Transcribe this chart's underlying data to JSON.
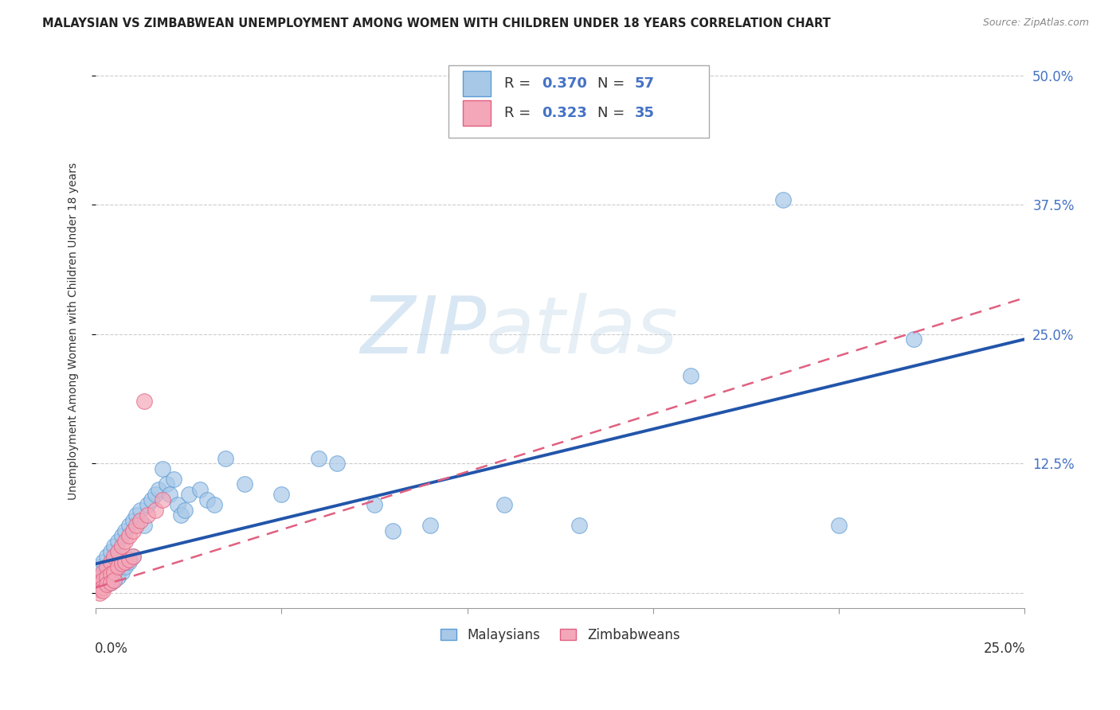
{
  "title": "MALAYSIAN VS ZIMBABWEAN UNEMPLOYMENT AMONG WOMEN WITH CHILDREN UNDER 18 YEARS CORRELATION CHART",
  "source": "Source: ZipAtlas.com",
  "ylabel": "Unemployment Among Women with Children Under 18 years",
  "xlim": [
    0.0,
    0.25
  ],
  "ylim": [
    -0.015,
    0.52
  ],
  "blue_color": "#a8c8e8",
  "blue_edge_color": "#5b9bd5",
  "pink_color": "#f4a7b9",
  "pink_edge_color": "#e06080",
  "blue_line_color": "#2255aa",
  "pink_line_color": "#e06080",
  "malaysians_label": "Malaysians",
  "zimbabweans_label": "Zimbabweans",
  "legend_text_color": "#4472c4",
  "watermark_color": "#cce0f0",
  "malaysians_x": [
    0.001,
    0.001,
    0.002,
    0.002,
    0.002,
    0.003,
    0.003,
    0.003,
    0.004,
    0.004,
    0.004,
    0.005,
    0.005,
    0.005,
    0.006,
    0.006,
    0.006,
    0.007,
    0.007,
    0.008,
    0.008,
    0.009,
    0.009,
    0.01,
    0.01,
    0.011,
    0.012,
    0.013,
    0.014,
    0.015,
    0.016,
    0.017,
    0.018,
    0.019,
    0.02,
    0.021,
    0.022,
    0.023,
    0.024,
    0.025,
    0.028,
    0.03,
    0.032,
    0.035,
    0.04,
    0.05,
    0.06,
    0.065,
    0.075,
    0.08,
    0.09,
    0.11,
    0.13,
    0.16,
    0.185,
    0.2,
    0.22
  ],
  "malaysians_y": [
    0.025,
    0.01,
    0.03,
    0.015,
    0.005,
    0.035,
    0.02,
    0.008,
    0.04,
    0.025,
    0.01,
    0.045,
    0.03,
    0.012,
    0.05,
    0.035,
    0.015,
    0.055,
    0.02,
    0.06,
    0.025,
    0.065,
    0.03,
    0.07,
    0.035,
    0.075,
    0.08,
    0.065,
    0.085,
    0.09,
    0.095,
    0.1,
    0.12,
    0.105,
    0.095,
    0.11,
    0.085,
    0.075,
    0.08,
    0.095,
    0.1,
    0.09,
    0.085,
    0.13,
    0.105,
    0.095,
    0.13,
    0.125,
    0.085,
    0.06,
    0.065,
    0.085,
    0.065,
    0.21,
    0.38,
    0.065,
    0.245
  ],
  "zimbabweans_x": [
    0.0,
    0.0,
    0.001,
    0.001,
    0.001,
    0.001,
    0.002,
    0.002,
    0.002,
    0.002,
    0.003,
    0.003,
    0.003,
    0.004,
    0.004,
    0.004,
    0.005,
    0.005,
    0.005,
    0.006,
    0.006,
    0.007,
    0.007,
    0.008,
    0.008,
    0.009,
    0.009,
    0.01,
    0.01,
    0.011,
    0.012,
    0.013,
    0.014,
    0.016,
    0.018
  ],
  "zimbabweans_y": [
    0.01,
    0.005,
    0.015,
    0.008,
    0.003,
    0.0,
    0.02,
    0.012,
    0.005,
    0.002,
    0.025,
    0.015,
    0.008,
    0.03,
    0.018,
    0.01,
    0.035,
    0.02,
    0.012,
    0.04,
    0.025,
    0.045,
    0.028,
    0.05,
    0.03,
    0.055,
    0.032,
    0.06,
    0.035,
    0.065,
    0.07,
    0.185,
    0.075,
    0.08,
    0.09
  ],
  "mal_trend_x0": 0.0,
  "mal_trend_y0": 0.028,
  "mal_trend_x1": 0.25,
  "mal_trend_y1": 0.245,
  "zim_trend_x0": 0.0,
  "zim_trend_y0": 0.005,
  "zim_trend_x1": 0.25,
  "zim_trend_y1": 0.285
}
